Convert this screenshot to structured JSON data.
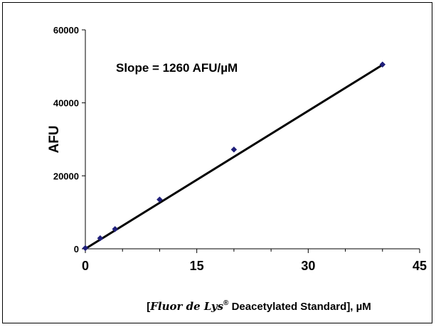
{
  "chart_data": {
    "type": "scatter",
    "title": "",
    "ylabel": "AFU",
    "xlabel": {
      "open": "[",
      "product": "Fluor de Lys",
      "mark": "®",
      "rest": " Deacetylated Standard",
      "close": "], µM"
    },
    "annotation": "Slope = 1260 AFU/µM",
    "xlim": [
      0,
      45
    ],
    "ylim": [
      0,
      60000
    ],
    "x_ticks": [
      "0",
      "15",
      "30",
      "45"
    ],
    "y_ticks": [
      "0",
      "20000",
      "40000",
      "60000"
    ],
    "grid": false,
    "series": [
      {
        "marker": "diamond",
        "color": "#1f1f7a",
        "points": [
          {
            "x": 0,
            "y": 200
          },
          {
            "x": 2,
            "y": 2900
          },
          {
            "x": 4,
            "y": 5400
          },
          {
            "x": 10,
            "y": 13500
          },
          {
            "x": 20,
            "y": 27200
          },
          {
            "x": 40,
            "y": 50500
          }
        ]
      }
    ],
    "trendline": {
      "slope": 1260,
      "intercept": 0,
      "x_from": 0,
      "x_to": 40,
      "color": "#000000"
    }
  }
}
